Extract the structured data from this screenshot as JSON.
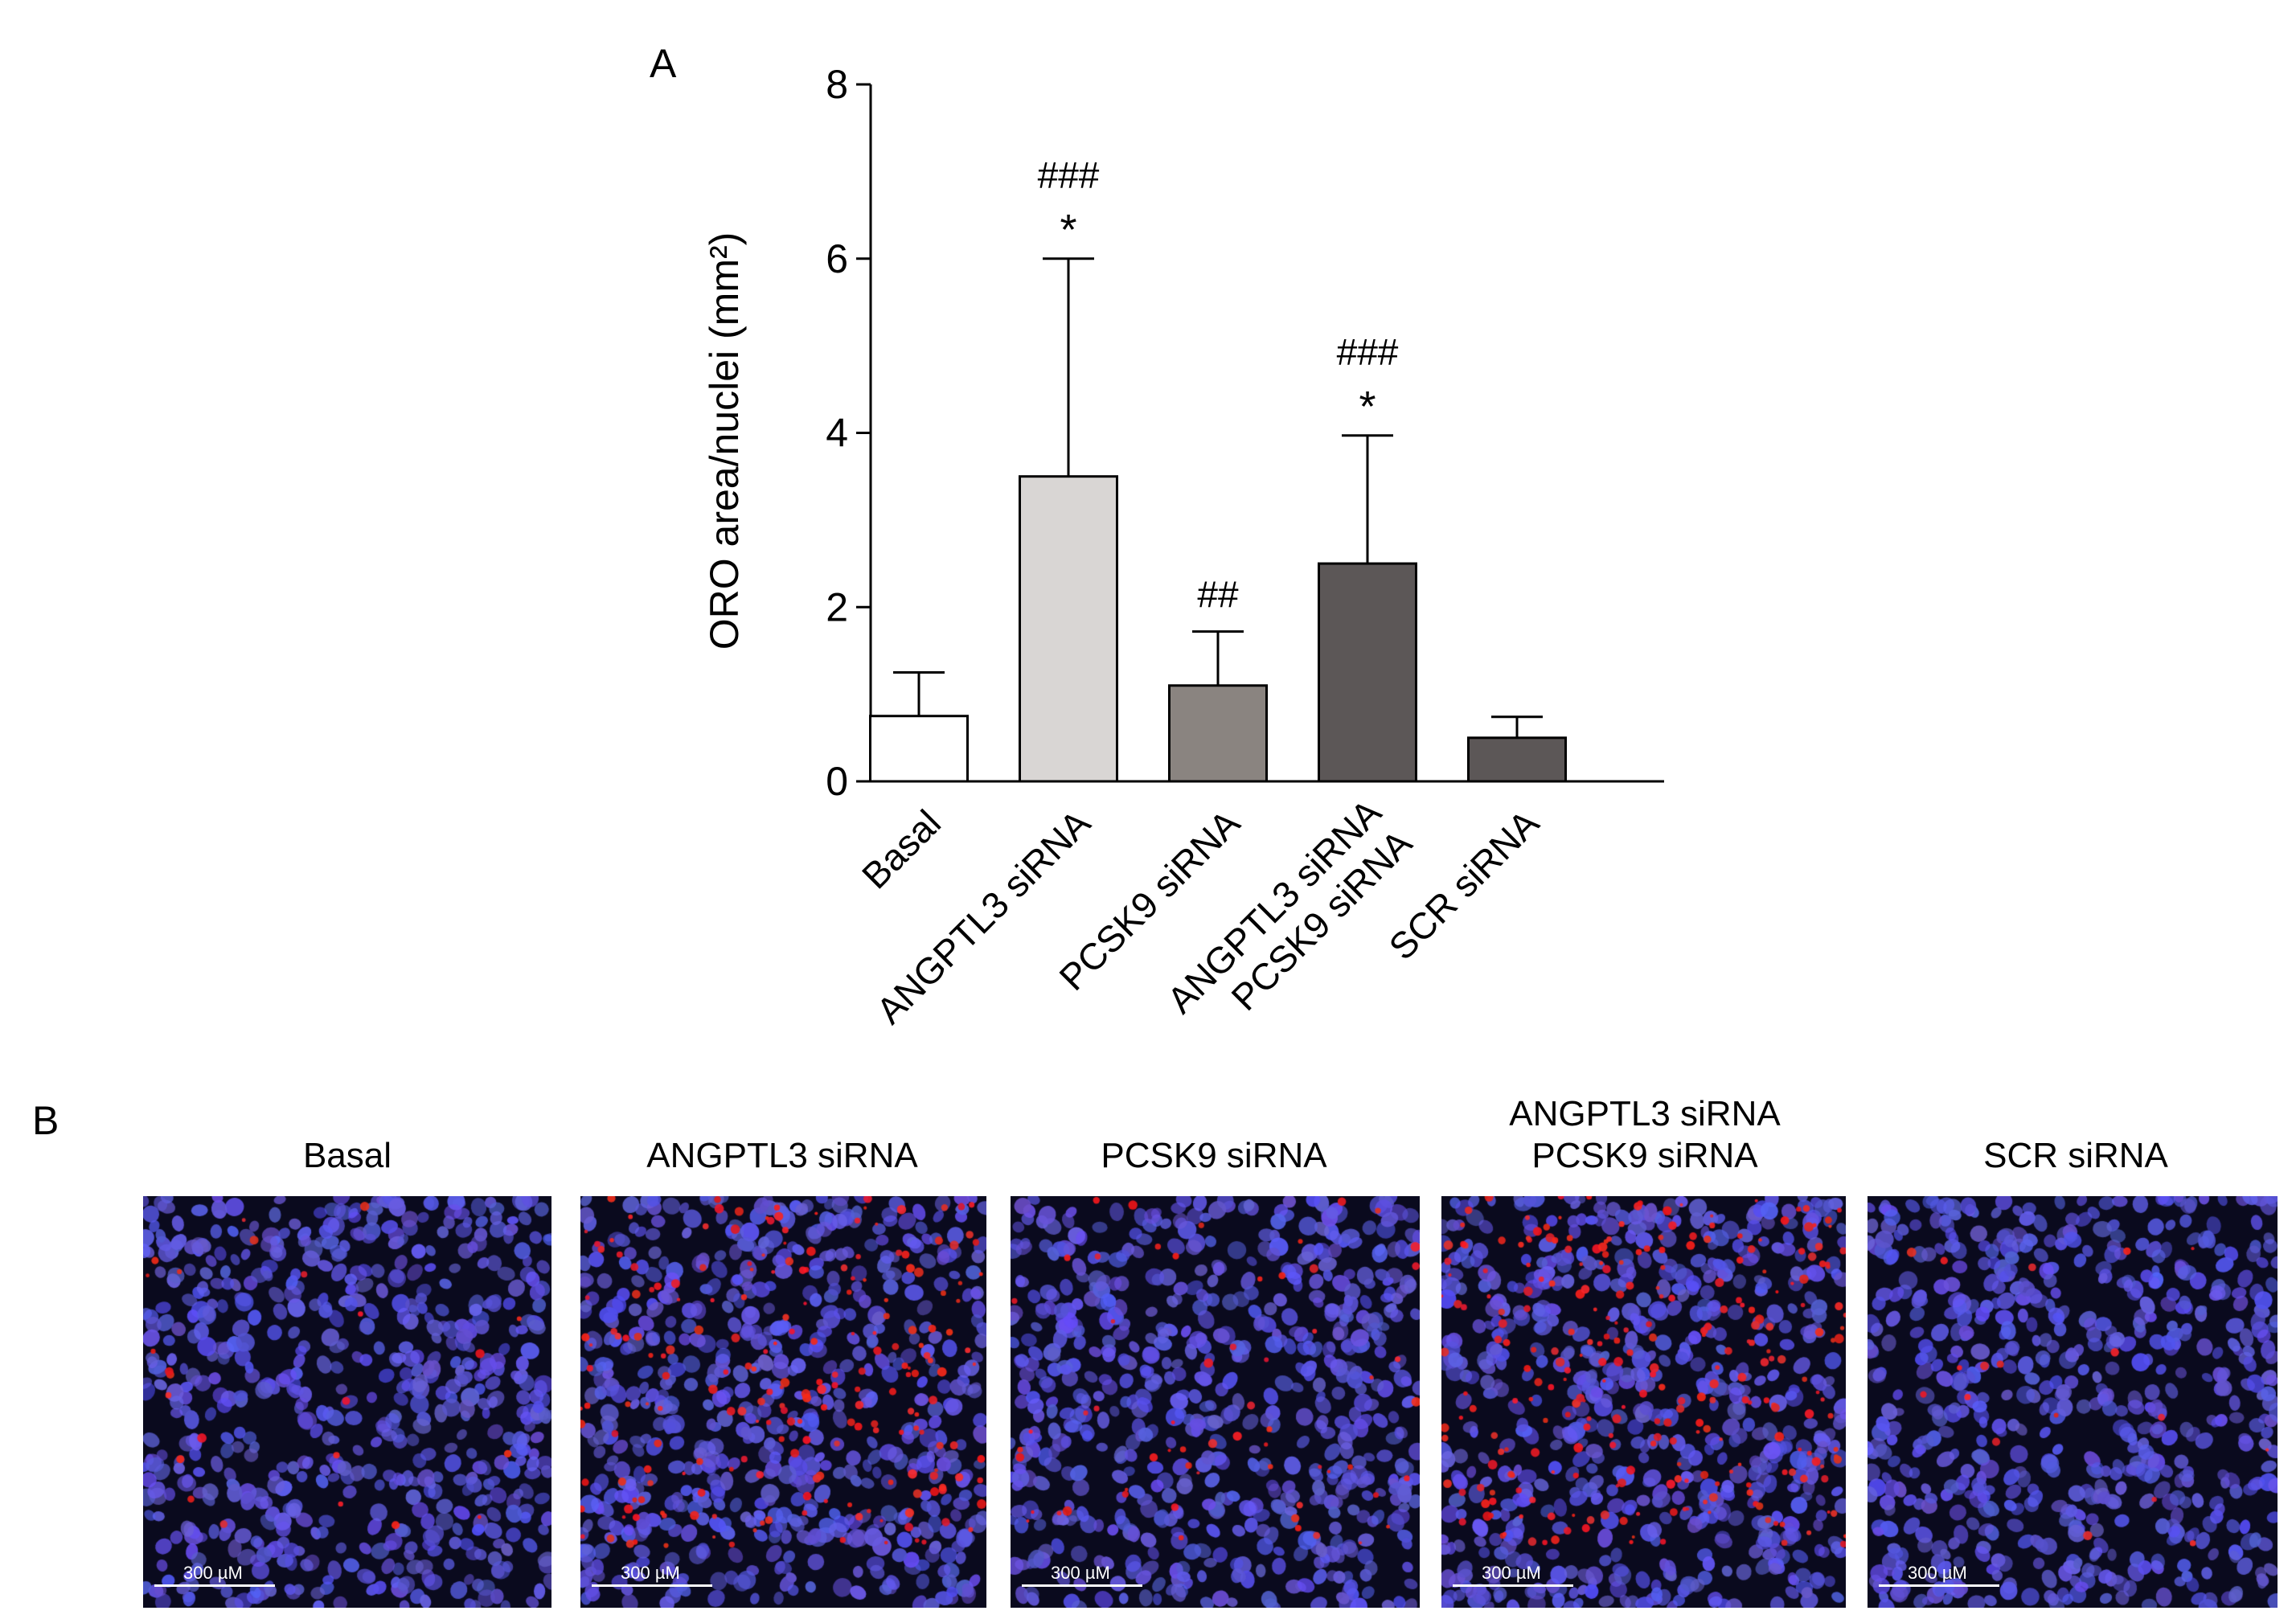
{
  "chart_data": {
    "type": "bar",
    "panel_label": "A",
    "ylabel": "ORO area/nuclei (mm²)",
    "ylim": [
      0,
      8
    ],
    "yticks": [
      0,
      2,
      4,
      6,
      8
    ],
    "categories": [
      [
        "Basal"
      ],
      [
        "ANGPTL3 siRNA"
      ],
      [
        "PCSK9 siRNA"
      ],
      [
        "ANGPTL3 siRNA",
        "PCSK9 siRNA"
      ],
      [
        "SCR siRNA"
      ]
    ],
    "values": [
      0.75,
      3.5,
      1.1,
      2.5,
      0.5
    ],
    "errors": [
      0.5,
      2.5,
      0.62,
      1.47,
      0.24
    ],
    "bar_colors": [
      "#ffffff",
      "#d9d6d4",
      "#8a8480",
      "#5c5757",
      "#5c5757"
    ],
    "annotations": [
      {
        "bar": 1,
        "lines": [
          "###",
          "*"
        ]
      },
      {
        "bar": 2,
        "lines": [
          "##"
        ]
      },
      {
        "bar": 3,
        "lines": [
          "###",
          "*"
        ]
      }
    ]
  },
  "panel_b": {
    "panel_label": "B",
    "images": [
      {
        "title": [
          "Basal"
        ],
        "scale": "300 µM",
        "blue": "#5a55d6",
        "red_density": 0.04
      },
      {
        "title": [
          "ANGPTL3 siRNA"
        ],
        "scale": "300 µM",
        "blue": "#5a55d6",
        "red_density": 0.35
      },
      {
        "title": [
          "PCSK9 siRNA"
        ],
        "scale": "300 µM",
        "blue": "#5a55d6",
        "red_density": 0.1
      },
      {
        "title": [
          "ANGPTL3 siRNA",
          "PCSK9 siRNA"
        ],
        "scale": "300 µM",
        "blue": "#5a55d6",
        "red_density": 0.45
      },
      {
        "title": [
          "SCR siRNA"
        ],
        "scale": "300 µM",
        "blue": "#5a55d6",
        "red_density": 0.03
      }
    ]
  }
}
